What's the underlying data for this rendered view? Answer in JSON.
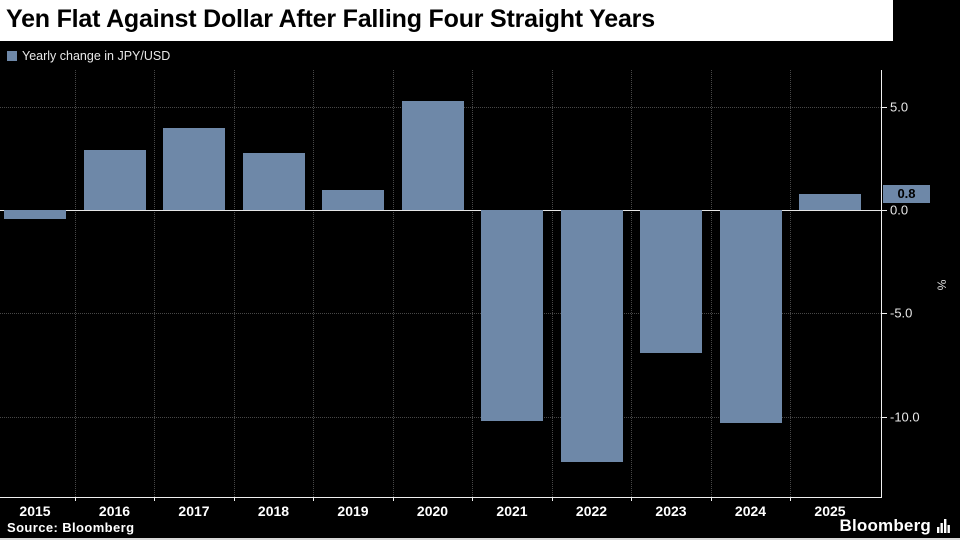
{
  "title": "Yen Flat Against Dollar After Falling Four Straight Years",
  "legend": {
    "label": "Yearly change in JPY/USD"
  },
  "source": "Source: Bloomberg",
  "brand": "Bloomberg",
  "colors": {
    "background": "#000000",
    "title_bg": "#ffffff",
    "title_text": "#000000",
    "bar": "#6e88a8",
    "grid": "#474747",
    "axis": "#f0f0f0",
    "zero_line": "#e6e6e6",
    "tick_text": "#e8e8e8",
    "current_label_bg": "#6e88a8",
    "current_label_text": "#000000"
  },
  "chart_data": {
    "type": "bar",
    "title": "Yen Flat Against Dollar After Falling Four Straight Years",
    "legend": "Yearly change in JPY/USD",
    "categories": [
      "2015",
      "2016",
      "2017",
      "2018",
      "2019",
      "2020",
      "2021",
      "2022",
      "2023",
      "2024",
      "2025"
    ],
    "values": [
      -0.4,
      2.9,
      4.0,
      2.8,
      1.0,
      5.3,
      -10.2,
      -12.2,
      -6.9,
      -10.3,
      0.8
    ],
    "xlabel": "",
    "ylabel": "%",
    "ylim": [
      -13.9,
      6.8
    ],
    "yticks": [
      5.0,
      0.0,
      -5.0,
      -10.0
    ],
    "ytick_labels": [
      "5.0",
      "0.0",
      "-5.0",
      "-10.0"
    ],
    "current_value_label": "0.8",
    "grid": "vertical-dotted",
    "legend_position": "top-left",
    "axis_position": "right",
    "source": "Source: Bloomberg"
  }
}
